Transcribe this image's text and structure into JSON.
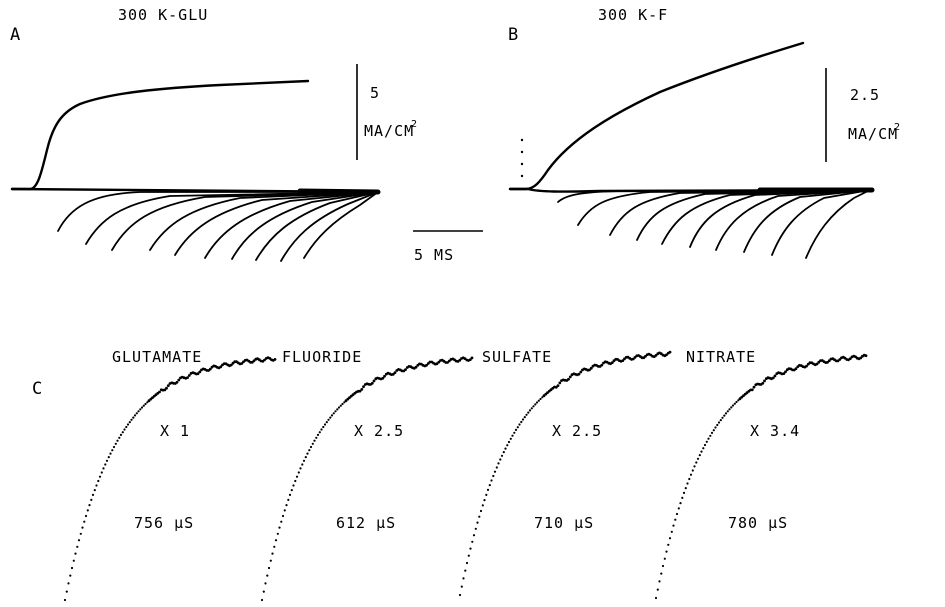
{
  "panelA": {
    "letter": "A",
    "title": "300 K-GLU",
    "scale_value": "5",
    "scale_unit": "MA/CM",
    "scale_exp": "2"
  },
  "panelB": {
    "letter": "B",
    "title": "300 K-F",
    "scale_value": "2.5",
    "scale_unit": "MA/CM",
    "scale_exp": "2"
  },
  "time_scale": "5 MS",
  "panelC": {
    "letter": "C",
    "traces": [
      {
        "name": "GLUTAMATE",
        "factor": "X 1",
        "tau": "756 µS"
      },
      {
        "name": "FLUORIDE",
        "factor": "X 2.5",
        "tau": "612 µS"
      },
      {
        "name": "SULFATE",
        "factor": "X 2.5",
        "tau": "710 µS"
      },
      {
        "name": "NITRATE",
        "factor": "X 3.4",
        "tau": "780 µS"
      }
    ]
  }
}
